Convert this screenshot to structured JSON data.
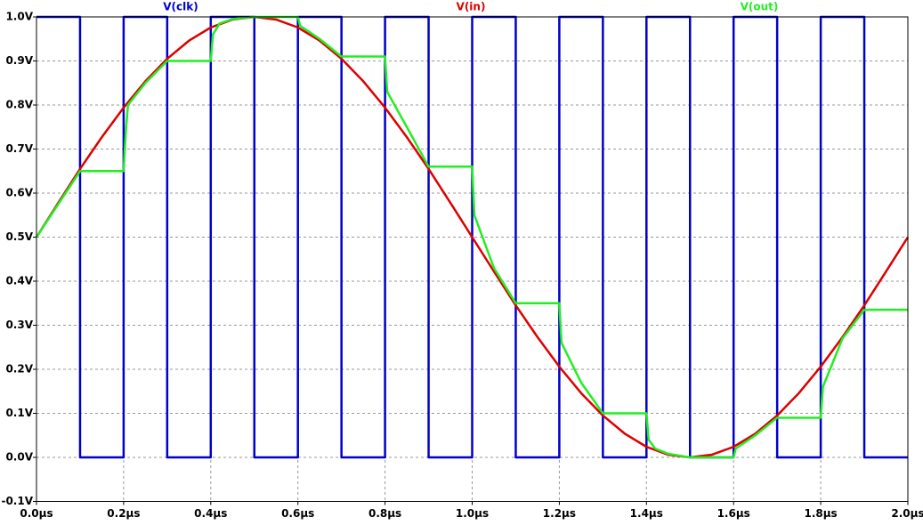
{
  "chart_data": {
    "type": "line",
    "xlim": [
      0,
      2.0
    ],
    "ylim": [
      -0.1,
      1.0
    ],
    "grid": true,
    "xticks": [
      {
        "value": 0,
        "label": "0.0µs"
      },
      {
        "value": 0.2,
        "label": "0.2µs"
      },
      {
        "value": 0.4,
        "label": "0.4µs"
      },
      {
        "value": 0.6,
        "label": "0.6µs"
      },
      {
        "value": 0.8,
        "label": "0.8µs"
      },
      {
        "value": 1.0,
        "label": "1.0µs"
      },
      {
        "value": 1.2,
        "label": "1.2µs"
      },
      {
        "value": 1.4,
        "label": "1.4µs"
      },
      {
        "value": 1.6,
        "label": "1.6µs"
      },
      {
        "value": 1.8,
        "label": "1.8µs"
      },
      {
        "value": 2.0,
        "label": "2.0µs"
      }
    ],
    "yticks": [
      {
        "value": -0.1,
        "label": "-0.1V"
      },
      {
        "value": 0,
        "label": "0.0V"
      },
      {
        "value": 0.1,
        "label": "0.1V"
      },
      {
        "value": 0.2,
        "label": "0.2V"
      },
      {
        "value": 0.3,
        "label": "0.3V"
      },
      {
        "value": 0.4,
        "label": "0.4V"
      },
      {
        "value": 0.5,
        "label": "0.5V"
      },
      {
        "value": 0.6,
        "label": "0.6V"
      },
      {
        "value": 0.7,
        "label": "0.7V"
      },
      {
        "value": 0.8,
        "label": "0.8V"
      },
      {
        "value": 0.9,
        "label": "0.9V"
      },
      {
        "value": 1.0,
        "label": "1.0V"
      }
    ],
    "series": [
      {
        "name": "V(clk)",
        "color": "#0000cc",
        "x": [
          0,
          0.1,
          0.1,
          0.2,
          0.2,
          0.3,
          0.3,
          0.4,
          0.4,
          0.5,
          0.5,
          0.6,
          0.6,
          0.7,
          0.7,
          0.8,
          0.8,
          0.9,
          0.9,
          1.0,
          1.0,
          1.1,
          1.1,
          1.2,
          1.2,
          1.3,
          1.3,
          1.4,
          1.4,
          1.5,
          1.5,
          1.6,
          1.6,
          1.7,
          1.7,
          1.8,
          1.8,
          1.9,
          1.9,
          2.0
        ],
        "values": [
          1,
          1,
          0,
          0,
          1,
          1,
          0,
          0,
          1,
          1,
          0,
          0,
          1,
          1,
          0,
          0,
          1,
          1,
          0,
          0,
          1,
          1,
          0,
          0,
          1,
          1,
          0,
          0,
          1,
          1,
          0,
          0,
          1,
          1,
          0,
          0,
          1,
          1,
          0,
          0
        ]
      },
      {
        "name": "V(in)",
        "color": "#dd0000",
        "x": [
          0,
          0.05,
          0.1,
          0.15,
          0.2,
          0.25,
          0.3,
          0.35,
          0.4,
          0.45,
          0.5,
          0.55,
          0.6,
          0.65,
          0.7,
          0.75,
          0.8,
          0.85,
          0.9,
          0.95,
          1.0,
          1.05,
          1.1,
          1.15,
          1.2,
          1.25,
          1.3,
          1.35,
          1.4,
          1.45,
          1.5,
          1.55,
          1.6,
          1.65,
          1.7,
          1.75,
          1.8,
          1.85,
          1.9,
          1.95,
          2.0
        ],
        "values": [
          0.5,
          0.578,
          0.655,
          0.727,
          0.794,
          0.854,
          0.905,
          0.946,
          0.976,
          0.994,
          1.0,
          0.994,
          0.976,
          0.946,
          0.905,
          0.854,
          0.794,
          0.727,
          0.655,
          0.578,
          0.5,
          0.422,
          0.345,
          0.273,
          0.206,
          0.146,
          0.095,
          0.054,
          0.024,
          0.006,
          0.0,
          0.006,
          0.024,
          0.054,
          0.095,
          0.146,
          0.206,
          0.273,
          0.345,
          0.422,
          0.5
        ]
      },
      {
        "name": "V(out)",
        "color": "#22ee22",
        "x": [
          0,
          0.05,
          0.1,
          0.2,
          0.205,
          0.21,
          0.25,
          0.3,
          0.4,
          0.405,
          0.42,
          0.45,
          0.5,
          0.6,
          0.605,
          0.65,
          0.7,
          0.8,
          0.805,
          0.85,
          0.9,
          1.0,
          1.005,
          1.05,
          1.1,
          1.2,
          1.205,
          1.25,
          1.3,
          1.4,
          1.405,
          1.42,
          1.45,
          1.5,
          1.6,
          1.605,
          1.65,
          1.7,
          1.8,
          1.805,
          1.85,
          1.9,
          2.0
        ],
        "values": [
          0.5,
          0.575,
          0.65,
          0.65,
          0.74,
          0.8,
          0.85,
          0.9,
          0.9,
          0.96,
          0.985,
          0.995,
          1.0,
          1.0,
          0.98,
          0.95,
          0.91,
          0.91,
          0.83,
          0.75,
          0.66,
          0.66,
          0.55,
          0.43,
          0.35,
          0.35,
          0.26,
          0.17,
          0.1,
          0.1,
          0.04,
          0.02,
          0.008,
          0.0,
          0.0,
          0.02,
          0.05,
          0.09,
          0.09,
          0.16,
          0.27,
          0.335,
          0.335
        ]
      }
    ]
  }
}
